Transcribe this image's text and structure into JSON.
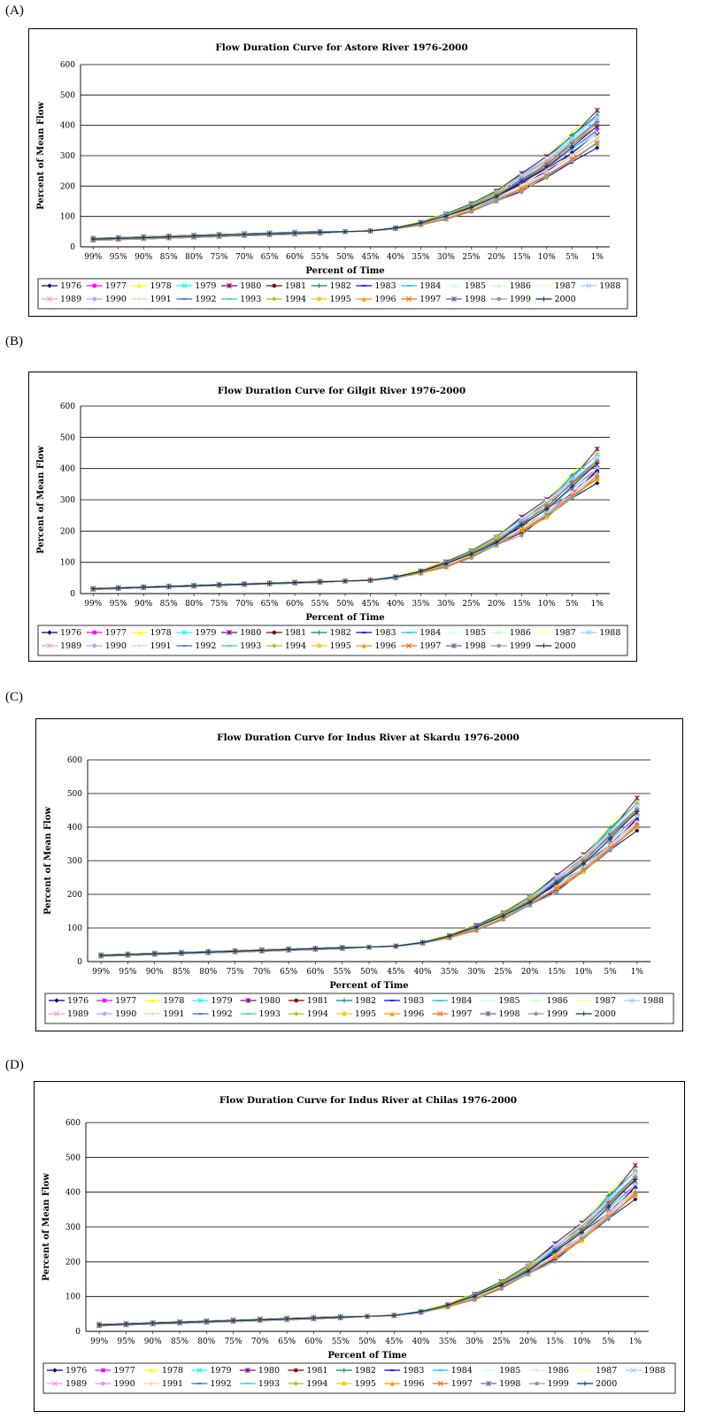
{
  "x_categories": [
    "99%",
    "95%",
    "90%",
    "85%",
    "80%",
    "75%",
    "70%",
    "65%",
    "60%",
    "55%",
    "50%",
    "45%",
    "40%",
    "35%",
    "30%",
    "25%",
    "20%",
    "15%",
    "10%",
    "5%",
    "1%"
  ],
  "panels_meta": [
    {
      "label": "(A)",
      "legend_years": [
        "1976",
        "1977",
        "1978",
        "1979",
        "1980",
        "1981",
        "1982",
        "1983",
        "1984",
        "1985",
        "1986",
        "1987",
        "1988",
        "1989",
        "1990",
        "1991",
        "1992",
        "1993",
        "1994",
        "1995",
        "1996",
        "1997",
        "1998",
        "1999",
        "2000"
      ]
    },
    {
      "label": "(B)",
      "legend_years": [
        "1976",
        "1977",
        "1978",
        "1979",
        "1980",
        "1981",
        "1982",
        "1983",
        "1984",
        "1985",
        "1986",
        "1987",
        "1988",
        "1989",
        "1990",
        "1991",
        "1992",
        "1993",
        "1994",
        "1995",
        "1996",
        "1997",
        "1998",
        "1999",
        "2000"
      ]
    },
    {
      "label": "(C)",
      "legend_years": [
        "1976",
        "1977",
        "1978",
        "1979",
        "1980",
        "1981",
        "1982",
        "1983",
        "1984",
        "1985",
        "1986",
        "1987",
        "1988",
        "1989",
        "1990",
        "1991",
        "1992",
        "1993",
        "1994",
        "1995",
        "1996",
        "1997",
        "1998",
        "1999",
        "2000"
      ]
    },
    {
      "label": "(D)",
      "legend_years": [
        "1976",
        "1977",
        "1978",
        "1979",
        "1980",
        "1981",
        "1982",
        "1983",
        "1984",
        "1985",
        "1986",
        "1987",
        "1988",
        "1989",
        "1990",
        "1991",
        "1992",
        "1993",
        "1994",
        "1995",
        "1996",
        "1997",
        "1998",
        "1999",
        "2000"
      ]
    }
  ],
  "series_style": [
    {
      "color": "#000080",
      "marker": "diamond"
    },
    {
      "color": "#ff00ff",
      "marker": "square"
    },
    {
      "color": "#ffff00",
      "marker": "triangle"
    },
    {
      "color": "#00ffff",
      "marker": "x"
    },
    {
      "color": "#800080",
      "marker": "star"
    },
    {
      "color": "#800000",
      "marker": "circle"
    },
    {
      "color": "#008080",
      "marker": "plus"
    },
    {
      "color": "#0000ff",
      "marker": "dash"
    },
    {
      "color": "#00ccff",
      "marker": "dash"
    },
    {
      "color": "#ccffff",
      "marker": "x"
    },
    {
      "color": "#ccffcc",
      "marker": "circle"
    },
    {
      "color": "#ffff99",
      "marker": "dash"
    },
    {
      "color": "#99ccff",
      "marker": "x"
    },
    {
      "color": "#ff99cc",
      "marker": "x"
    },
    {
      "color": "#cc99ff",
      "marker": "circle"
    },
    {
      "color": "#ffcc99",
      "marker": "plus"
    },
    {
      "color": "#3366ff",
      "marker": "dash"
    },
    {
      "color": "#33cccc",
      "marker": "dash"
    },
    {
      "color": "#99cc00",
      "marker": "diamond"
    },
    {
      "color": "#ffcc00",
      "marker": "square"
    },
    {
      "color": "#ff9900",
      "marker": "triangle"
    },
    {
      "color": "#ff6600",
      "marker": "x"
    },
    {
      "color": "#666699",
      "marker": "star"
    },
    {
      "color": "#969696",
      "marker": "circle"
    },
    {
      "color": "#003366",
      "marker": "plus"
    }
  ],
  "chart_data": [
    {
      "type": "line",
      "title": "Flow Duration Curve for Astore River 1976-2000",
      "xlabel": "Percent of Time",
      "ylabel": "Percent of Mean Flow",
      "ylim": [
        0,
        600
      ],
      "yticks": [
        0,
        100,
        200,
        300,
        400,
        500,
        600
      ],
      "grid": "horizontal",
      "legend": "bottom",
      "series_names": [
        "1976",
        "1977",
        "1978",
        "1979",
        "1980",
        "1981",
        "1982",
        "1983",
        "1984",
        "1985",
        "1986",
        "1987",
        "1988",
        "1989",
        "1990",
        "1991",
        "1992",
        "1993",
        "1994",
        "1995",
        "1996",
        "1997",
        "1998",
        "1999",
        "2000"
      ],
      "y_base": 25,
      "y_spread": 8,
      "knee_y": 60,
      "knee_spread": 15,
      "mid_y": 150,
      "mid_spread": 25,
      "end_y": 390,
      "end_spread": 120
    },
    {
      "type": "line",
      "title": "Flow Duration Curve for Gilgit River 1976-2000",
      "xlabel": "Percent of Time",
      "ylabel": "Percent of Mean Flow",
      "ylim": [
        0,
        600
      ],
      "yticks": [
        0,
        100,
        200,
        300,
        400,
        500,
        600
      ],
      "grid": "horizontal",
      "legend": "bottom",
      "series_names": [
        "1976",
        "1977",
        "1978",
        "1979",
        "1980",
        "1981",
        "1982",
        "1983",
        "1984",
        "1985",
        "1986",
        "1987",
        "1988",
        "1989",
        "1990",
        "1991",
        "1992",
        "1993",
        "1994",
        "1995",
        "1996",
        "1997",
        "1998",
        "1999",
        "2000"
      ],
      "y_base": 15,
      "y_spread": 4,
      "knee_y": 60,
      "knee_spread": 25,
      "mid_y": 140,
      "mid_spread": 30,
      "end_y": 410,
      "end_spread": 100
    },
    {
      "type": "line",
      "title": "Flow Duration Curve for  Indus River at Skardu 1976-2000",
      "xlabel": "Percent of Time",
      "ylabel": "Percent of Mean Flow",
      "ylim": [
        0,
        600
      ],
      "yticks": [
        0,
        100,
        200,
        300,
        400,
        500,
        600
      ],
      "grid": "horizontal",
      "legend": "bottom",
      "series_names": [
        "1976",
        "1977",
        "1978",
        "1979",
        "1980",
        "1981",
        "1982",
        "1983",
        "1984",
        "1985",
        "1986",
        "1987",
        "1988",
        "1989",
        "1990",
        "1991",
        "1992",
        "1993",
        "1994",
        "1995",
        "1996",
        "1997",
        "1998",
        "1999",
        "2000"
      ],
      "y_base": 18,
      "y_spread": 5,
      "knee_y": 55,
      "knee_spread": 20,
      "mid_y": 145,
      "mid_spread": 25,
      "end_y": 440,
      "end_spread": 90
    },
    {
      "type": "line",
      "title": "Flow Duration Curve for  Indus River at Chilas 1976-2000",
      "xlabel": "Percent of Time",
      "ylabel": "Percent of Mean Flow",
      "ylim": [
        0,
        600
      ],
      "yticks": [
        0,
        100,
        200,
        300,
        400,
        500,
        600
      ],
      "grid": "horizontal",
      "legend": "bottom",
      "series_names": [
        "1976",
        "1977",
        "1978",
        "1979",
        "1980",
        "1981",
        "1982",
        "1983",
        "1984",
        "1985",
        "1986",
        "1987",
        "1988",
        "1989",
        "1990",
        "1991",
        "1992",
        "1993",
        "1994",
        "1995",
        "1996",
        "1997",
        "1998",
        "1999",
        "2000"
      ],
      "y_base": 18,
      "y_spread": 5,
      "knee_y": 60,
      "knee_spread": 20,
      "mid_y": 150,
      "mid_spread": 25,
      "end_y": 430,
      "end_spread": 90
    }
  ]
}
